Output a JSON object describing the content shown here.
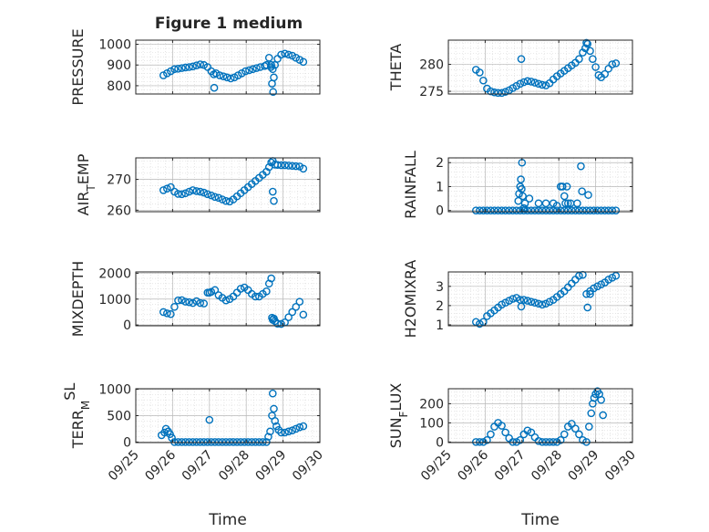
{
  "figure": {
    "title": "Figure 1 medium",
    "marker_color": "#0072BD",
    "axis_color": "#262626",
    "grid_color": "#b9b9b9"
  },
  "chart_data": [
    {
      "type": "scatter",
      "ylabel": "PRESSURE",
      "ylabel_parts": [
        {
          "t": "PRESSURE",
          "s": ""
        }
      ],
      "xlim": [
        0,
        5
      ],
      "ylim": [
        760,
        1020
      ],
      "yticks": [
        800,
        900,
        1000
      ],
      "yticklabels": [
        "800",
        "900",
        "1000"
      ],
      "grid": "on",
      "x": [
        0.75,
        0.85,
        0.95,
        1.05,
        1.15,
        1.25,
        1.35,
        1.45,
        1.55,
        1.65,
        1.75,
        1.85,
        1.95,
        2.05,
        2.12,
        2.18,
        2.28,
        2.38,
        2.48,
        2.58,
        2.68,
        2.78,
        2.88,
        2.98,
        3.08,
        3.18,
        3.28,
        3.38,
        3.5,
        3.55,
        3.62,
        3.68,
        3.72,
        3.78,
        3.85,
        3.95,
        4.05,
        4.15,
        4.25,
        4.35,
        4.45,
        4.55,
        2.13,
        3.67,
        3.7,
        3.73,
        3.75
      ],
      "y": [
        850,
        860,
        870,
        880,
        882,
        885,
        888,
        890,
        893,
        898,
        903,
        900,
        890,
        870,
        855,
        860,
        850,
        845,
        840,
        835,
        840,
        850,
        860,
        870,
        875,
        880,
        885,
        890,
        895,
        900,
        935,
        900,
        880,
        900,
        930,
        950,
        955,
        950,
        945,
        935,
        925,
        915,
        790,
        890,
        810,
        770,
        840
      ]
    },
    {
      "type": "scatter",
      "ylabel": "THETA",
      "ylabel_parts": [
        {
          "t": "THETA",
          "s": ""
        }
      ],
      "xlim": [
        0,
        5
      ],
      "ylim": [
        274.5,
        284.5
      ],
      "yticks": [
        275,
        280
      ],
      "yticklabels": [
        "275",
        "280"
      ],
      "grid": "on",
      "x": [
        0.75,
        0.85,
        0.95,
        1.05,
        1.15,
        1.25,
        1.35,
        1.45,
        1.55,
        1.65,
        1.75,
        1.85,
        1.95,
        2.05,
        2.15,
        2.25,
        2.35,
        2.45,
        2.55,
        2.65,
        2.75,
        2.85,
        2.95,
        3.05,
        3.15,
        3.25,
        3.35,
        3.45,
        3.55,
        3.65,
        3.72,
        3.78,
        3.85,
        3.92,
        4.0,
        4.08,
        4.15,
        4.25,
        4.35,
        4.45,
        4.55,
        1.98,
        3.75
      ],
      "y": [
        279,
        278.5,
        277,
        275.5,
        275,
        274.8,
        274.7,
        274.7,
        274.9,
        275.2,
        275.6,
        276,
        276.4,
        276.7,
        276.9,
        276.8,
        276.6,
        276.4,
        276.2,
        276.1,
        276.5,
        277.2,
        277.8,
        278.3,
        278.8,
        279.3,
        279.8,
        280.3,
        281,
        282.2,
        283,
        283.8,
        282.5,
        281,
        279.5,
        278,
        277.6,
        278.2,
        279.2,
        280,
        280.2,
        281,
        284
      ]
    },
    {
      "type": "scatter",
      "ylabel": "AIR_TEMP",
      "ylabel_parts": [
        {
          "t": "AIR",
          "s": ""
        },
        {
          "t": "T",
          "s": "sub"
        },
        {
          "t": "EMP",
          "s": ""
        }
      ],
      "xlim": [
        0,
        5
      ],
      "ylim": [
        259.5,
        277
      ],
      "yticks": [
        260,
        270
      ],
      "yticklabels": [
        "260",
        "270"
      ],
      "grid": "on",
      "x": [
        0.75,
        0.85,
        0.95,
        1.05,
        1.15,
        1.25,
        1.35,
        1.45,
        1.55,
        1.65,
        1.75,
        1.85,
        1.95,
        2.05,
        2.15,
        2.25,
        2.35,
        2.45,
        2.55,
        2.65,
        2.75,
        2.85,
        2.95,
        3.05,
        3.15,
        3.25,
        3.35,
        3.45,
        3.55,
        3.62,
        3.68,
        3.72,
        3.78,
        3.85,
        3.95,
        4.05,
        4.15,
        4.25,
        4.35,
        4.45,
        4.55,
        3.75,
        3.72
      ],
      "y": [
        266.5,
        267,
        267.5,
        266,
        265.3,
        265.2,
        265.5,
        266,
        266.5,
        266.2,
        266,
        265.7,
        265.2,
        264.8,
        264.3,
        264,
        263.5,
        263,
        262.8,
        263.5,
        264.5,
        265.5,
        266.5,
        267.5,
        268.5,
        269.5,
        270.5,
        271.5,
        272.5,
        274,
        275.5,
        276,
        274.8,
        274.7,
        274.6,
        274.6,
        274.5,
        274.4,
        274.3,
        274.2,
        273.5,
        263,
        266
      ]
    },
    {
      "type": "scatter",
      "ylabel": "RAINFALL",
      "ylabel_parts": [
        {
          "t": "RAINFALL",
          "s": ""
        }
      ],
      "xlim": [
        0,
        5
      ],
      "ylim": [
        -0.05,
        2.2
      ],
      "yticks": [
        0,
        1,
        2
      ],
      "yticklabels": [
        "0",
        "1",
        "2"
      ],
      "grid": "on",
      "x": [
        0.75,
        0.85,
        0.95,
        1.05,
        1.15,
        1.25,
        1.35,
        1.45,
        1.55,
        1.65,
        1.75,
        1.85,
        1.95,
        2.05,
        2.15,
        2.25,
        2.35,
        2.45,
        2.55,
        2.65,
        2.75,
        2.85,
        2.95,
        3.05,
        3.15,
        3.25,
        3.35,
        3.45,
        3.55,
        3.65,
        3.75,
        3.85,
        3.95,
        4.05,
        4.15,
        4.25,
        4.35,
        4.45,
        4.55,
        1.9,
        1.92,
        1.95,
        1.97,
        1.99,
        2.0,
        2.02,
        2.05,
        2.08,
        2.2,
        2.45,
        2.65,
        2.85,
        2.95,
        3.05,
        3.1,
        3.15,
        3.18,
        3.22,
        3.25,
        3.32,
        3.5,
        3.6,
        3.63,
        3.8
      ],
      "y": [
        0,
        0,
        0,
        0,
        0,
        0,
        0,
        0,
        0,
        0,
        0,
        0,
        0,
        0,
        0,
        0,
        0,
        0,
        0,
        0,
        0,
        0,
        0,
        0,
        0,
        0,
        0,
        0,
        0,
        0,
        0,
        0,
        0,
        0,
        0,
        0,
        0,
        0,
        0,
        0.4,
        0.7,
        1.0,
        1.3,
        0.9,
        2.0,
        0.6,
        0.1,
        0.3,
        0.5,
        0.3,
        0.3,
        0.3,
        0.2,
        1.0,
        1.0,
        0.6,
        0.3,
        1.0,
        0.3,
        0.3,
        0.3,
        1.85,
        0.8,
        0.65
      ]
    },
    {
      "type": "scatter",
      "ylabel": "MIXDEPTH",
      "ylabel_parts": [
        {
          "t": "MIXDEPTH",
          "s": ""
        }
      ],
      "xlim": [
        0,
        5
      ],
      "ylim": [
        -30,
        2050
      ],
      "yticks": [
        0,
        1000,
        2000
      ],
      "yticklabels": [
        "0",
        "1000",
        "2000"
      ],
      "grid": "on",
      "x": [
        0.75,
        0.85,
        0.95,
        1.05,
        1.15,
        1.25,
        1.35,
        1.45,
        1.55,
        1.65,
        1.75,
        1.85,
        1.95,
        2.05,
        2.15,
        2.25,
        2.35,
        2.45,
        2.55,
        2.65,
        2.75,
        2.85,
        2.95,
        3.05,
        3.15,
        3.25,
        3.35,
        3.45,
        3.55,
        3.62,
        3.68,
        3.72,
        3.78,
        3.85,
        3.95,
        4.05,
        4.15,
        4.25,
        4.35,
        4.45,
        4.55,
        3.7,
        3.75,
        2.0
      ],
      "y": [
        500,
        450,
        420,
        700,
        950,
        960,
        900,
        880,
        850,
        920,
        850,
        830,
        1250,
        1280,
        1350,
        1150,
        1050,
        950,
        1000,
        1100,
        1250,
        1400,
        1450,
        1350,
        1200,
        1100,
        1100,
        1200,
        1300,
        1600,
        1800,
        200,
        150,
        50,
        40,
        100,
        300,
        500,
        700,
        900,
        400,
        280,
        250,
        1250
      ]
    },
    {
      "type": "scatter",
      "ylabel": "H2OMIXRA",
      "ylabel_parts": [
        {
          "t": "H2OMIXRA",
          "s": ""
        }
      ],
      "xlim": [
        0,
        5
      ],
      "ylim": [
        0.95,
        3.75
      ],
      "yticks": [
        1,
        2,
        3
      ],
      "yticklabels": [
        "1",
        "2",
        "3"
      ],
      "grid": "on",
      "x": [
        0.75,
        0.85,
        0.95,
        1.05,
        1.15,
        1.25,
        1.35,
        1.45,
        1.55,
        1.65,
        1.75,
        1.85,
        1.95,
        2.05,
        2.15,
        2.25,
        2.35,
        2.45,
        2.55,
        2.65,
        2.75,
        2.85,
        2.95,
        3.05,
        3.15,
        3.25,
        3.35,
        3.45,
        3.55,
        3.65,
        3.75,
        3.85,
        3.95,
        4.05,
        4.15,
        4.25,
        4.35,
        4.45,
        4.55,
        1.98,
        3.78,
        3.85
      ],
      "y": [
        1.15,
        1.05,
        1.15,
        1.45,
        1.6,
        1.75,
        1.9,
        2.05,
        2.15,
        2.25,
        2.35,
        2.4,
        2.3,
        2.3,
        2.25,
        2.2,
        2.15,
        2.1,
        2.05,
        2.1,
        2.2,
        2.3,
        2.45,
        2.6,
        2.75,
        2.95,
        3.15,
        3.35,
        3.55,
        3.6,
        2.6,
        2.75,
        2.9,
        3.0,
        3.1,
        3.2,
        3.35,
        3.45,
        3.55,
        1.95,
        1.9,
        2.6
      ]
    },
    {
      "type": "scatter",
      "ylabel": "TERR_MSL",
      "ylabel_parts": [
        {
          "t": "TERR",
          "s": ""
        },
        {
          "t": "M",
          "s": "sub"
        },
        {
          "t": "SL",
          "s": "sup"
        }
      ],
      "xlim": [
        0,
        5
      ],
      "ylim": [
        -10,
        1010
      ],
      "yticks": [
        0,
        500,
        1000
      ],
      "yticklabels": [
        "0",
        "500",
        "1000"
      ],
      "grid": "on",
      "x": [
        0.7,
        0.78,
        0.82,
        0.88,
        0.93,
        0.98,
        1.05,
        1.15,
        1.25,
        1.35,
        1.45,
        1.55,
        1.65,
        1.75,
        1.85,
        1.95,
        2.05,
        2.15,
        2.25,
        2.35,
        2.45,
        2.55,
        2.65,
        2.75,
        2.85,
        2.95,
        3.05,
        3.15,
        3.25,
        3.35,
        3.45,
        3.55,
        3.6,
        3.65,
        3.7,
        3.72,
        3.75,
        3.78,
        3.82,
        3.88,
        3.95,
        4.05,
        4.15,
        4.25,
        4.35,
        4.45,
        4.55,
        2.0
      ],
      "y": [
        130,
        180,
        250,
        200,
        150,
        80,
        0,
        0,
        0,
        0,
        0,
        0,
        0,
        0,
        0,
        0,
        0,
        0,
        0,
        0,
        0,
        0,
        0,
        0,
        0,
        0,
        0,
        0,
        0,
        0,
        0,
        0,
        100,
        200,
        500,
        920,
        630,
        400,
        300,
        230,
        180,
        180,
        200,
        220,
        250,
        280,
        300,
        420
      ]
    },
    {
      "type": "scatter",
      "ylabel": "SUN_FLUX",
      "ylabel_parts": [
        {
          "t": "SUN",
          "s": ""
        },
        {
          "t": "F",
          "s": "sub"
        },
        {
          "t": "LUX",
          "s": ""
        }
      ],
      "xlim": [
        0,
        5
      ],
      "ylim": [
        -3,
        278
      ],
      "yticks": [
        0,
        100,
        200
      ],
      "yticklabels": [
        "0",
        "100",
        "200"
      ],
      "grid": "on",
      "x": [
        0.75,
        0.85,
        0.95,
        1.05,
        1.15,
        1.25,
        1.35,
        1.45,
        1.55,
        1.65,
        1.75,
        1.85,
        1.95,
        2.05,
        2.15,
        2.25,
        2.35,
        2.45,
        2.55,
        2.65,
        2.75,
        2.85,
        2.95,
        3.05,
        3.15,
        3.25,
        3.35,
        3.45,
        3.55,
        3.65,
        3.75,
        3.82,
        3.88,
        3.92,
        3.96,
        4.0,
        4.05,
        4.1,
        4.15,
        4.2
      ],
      "y": [
        0,
        0,
        0,
        10,
        40,
        80,
        100,
        85,
        50,
        20,
        0,
        0,
        10,
        40,
        60,
        50,
        25,
        5,
        0,
        0,
        0,
        0,
        0,
        10,
        40,
        80,
        95,
        70,
        40,
        10,
        0,
        80,
        150,
        200,
        230,
        250,
        265,
        250,
        220,
        140
      ]
    }
  ],
  "xaxis": {
    "xlabel": "Time",
    "ticks": [
      0,
      1,
      2,
      3,
      4,
      5
    ],
    "ticklabels": [
      "09/25",
      "09/26",
      "09/27",
      "09/28",
      "09/29",
      "09/30"
    ]
  }
}
